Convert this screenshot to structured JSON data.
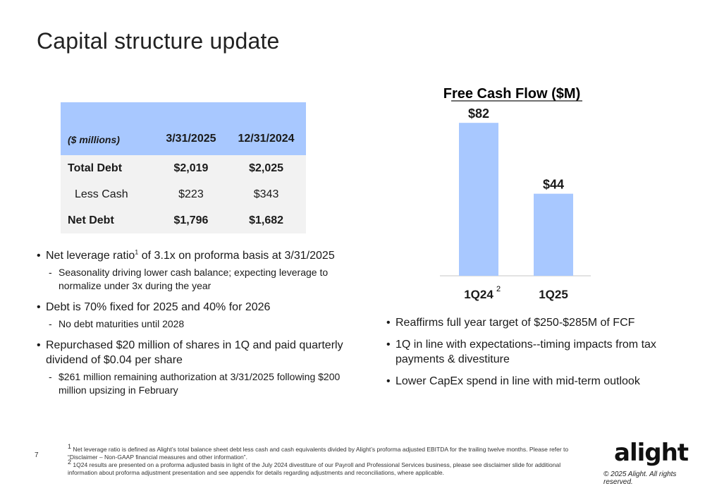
{
  "title": "Capital structure update",
  "debt_table": {
    "headers": [
      "($ millions)",
      "3/31/2025",
      "12/31/2024"
    ],
    "rows": [
      {
        "label": "Total Debt",
        "v1": "$2,019",
        "v2": "$2,025"
      },
      {
        "label": "Less Cash",
        "v1": "$223",
        "v2": "$343"
      },
      {
        "label": "Net Debt",
        "v1": "$1,796",
        "v2": "$1,682"
      }
    ]
  },
  "left_bullets": {
    "b1_pre": "Net leverage ratio",
    "b1_sup": "1",
    "b1_post": " of 3.1x on proforma basis at 3/31/2025",
    "b1_sub": "Seasonality driving lower cash balance; expecting leverage to normalize under 3x during the year",
    "b2": "Debt is 70% fixed for 2025 and 40% for 2026",
    "b2_sub": "No debt maturities until 2028",
    "b3": "Repurchased $20 million of shares in 1Q and paid quarterly dividend of $0.04 per share",
    "b3_sub": "$261 million remaining authorization at 3/31/2025 following $200 million upsizing in February"
  },
  "chart_data": {
    "type": "bar",
    "title": "Free Cash Flow ($M)",
    "categories": [
      "1Q24",
      "1Q25"
    ],
    "category_superscripts": [
      "2",
      ""
    ],
    "values": [
      82,
      44
    ],
    "value_labels": [
      "$82",
      "$44"
    ],
    "ylim": [
      0,
      90
    ],
    "colors": {
      "bar": "#a8c8ff"
    }
  },
  "right_bullets": [
    "Reaffirms full year target of $250-$285M of FCF",
    "1Q in line with expectations--timing impacts from tax payments & divestiture",
    "Lower CapEx spend in line with mid-term outlook"
  ],
  "page_number": "7",
  "footnotes": {
    "f1_sup": "1",
    "f1": " Net leverage ratio is defined as Alight’s total balance sheet debt less cash and cash equivalents divided by Alight’s proforma adjusted EBITDA for the trailing twelve months. Please refer to “Disclaimer – Non-GAAP financial measures and other information”.",
    "f2_sup": "2",
    "f2": " 1Q24 results are presented on a proforma adjusted basis in light of the July 2024 divestiture of our Payroll and Professional Services business, please see disclaimer slide for additional information about proforma adjustment presentation and see appendix for details regarding adjustments and reconciliations, where applicable."
  },
  "logo": "alight",
  "copyright": "© 2025 Alight. All rights reserved."
}
